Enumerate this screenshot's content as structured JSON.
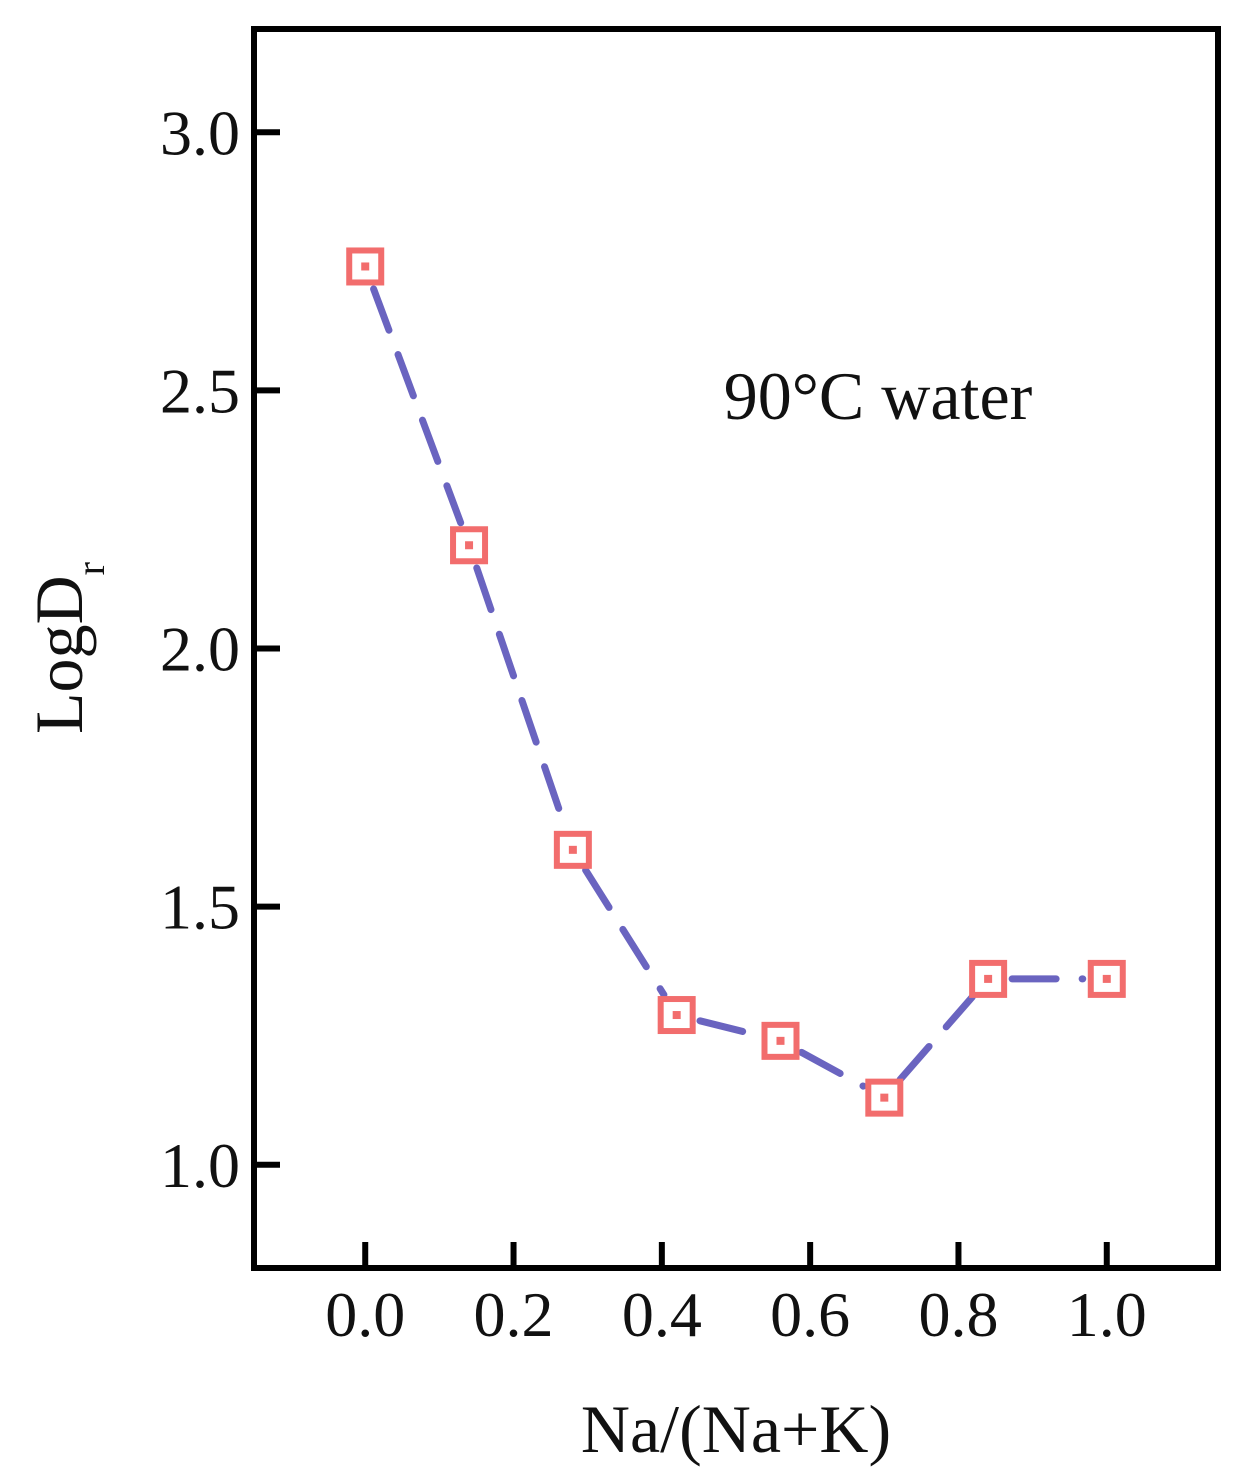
{
  "chart_data": {
    "type": "line",
    "title": "",
    "xlabel": "Na/(Na+K)",
    "ylabel": {
      "main": "LogD",
      "subscript": "r"
    },
    "annotation": "90°C water",
    "xlim": [
      -0.15,
      1.15
    ],
    "ylim": [
      0.8,
      3.2
    ],
    "x_ticks": [
      0.0,
      0.2,
      0.4,
      0.6,
      0.8,
      1.0
    ],
    "x_tick_labels": [
      "0.0",
      "0.2",
      "0.4",
      "0.6",
      "0.8",
      "1.0"
    ],
    "y_ticks": [
      1.0,
      1.5,
      2.0,
      2.5,
      3.0
    ],
    "y_tick_labels": [
      "1.0",
      "1.5",
      "2.0",
      "2.5",
      "3.0"
    ],
    "grid": false,
    "legend": "none",
    "series": [
      {
        "name": "LogDr",
        "x": [
          0.0,
          0.14,
          0.28,
          0.42,
          0.56,
          0.7,
          0.84,
          1.0
        ],
        "y": [
          2.74,
          2.2,
          1.61,
          1.29,
          1.24,
          1.13,
          1.36,
          1.36
        ],
        "marker": "square-open",
        "marker_color": "#f26d6d",
        "line_style": "dashed",
        "line_color": "#6a64c0"
      }
    ]
  }
}
